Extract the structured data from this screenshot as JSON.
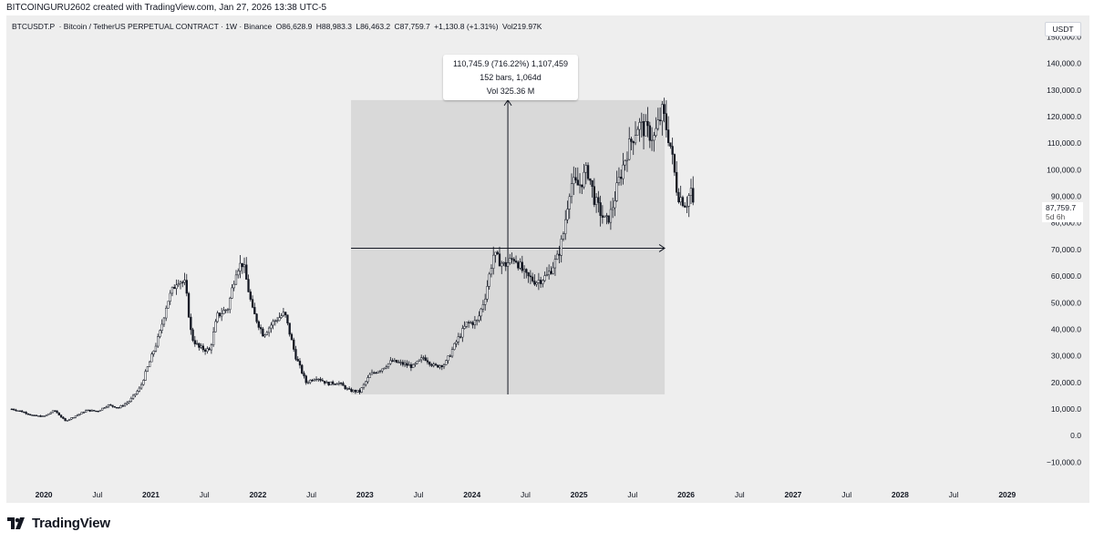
{
  "credit": "BITCOINGURU2602 created with TradingView.com, Jan 27, 2026 13:38 UTC-5",
  "header": {
    "symbol": "BTCUSDT.P",
    "description": "· Bitcoin / TetherUS PERPETUAL CONTRACT · 1W · Binance",
    "open": "O86,628.9",
    "high": "H88,983.3",
    "low": "L86,463.2",
    "close": "C87,759.7",
    "change": "+1,130.8 (+1.31%)",
    "volume": "Vol219.97K"
  },
  "currency": "USDT",
  "price_label": {
    "price": "87,759.7",
    "countdown": "5d 6h"
  },
  "measure": {
    "line1": "110,745.9 (716.22%) 1,107,459",
    "line2": "152 bars, 1,064d",
    "line3": "Vol 325.36 M",
    "start": {
      "year": 2022.87,
      "price": 15500
    },
    "end": {
      "year": 2025.8,
      "price": 126200
    }
  },
  "brand": "TradingView",
  "colors": {
    "background": "#eeeeee",
    "candle": "#131722",
    "measure_fill": "#d9d9d9",
    "measure_line": "#131722"
  },
  "chart_data": {
    "type": "candlestick",
    "title": "BTCUSDT.P · Bitcoin / TetherUS PERPETUAL CONTRACT · 1W · Binance",
    "xlabel": "",
    "ylabel": "USDT",
    "xlim": [
      2019.65,
      2029.3
    ],
    "ylim": [
      -15000,
      157000
    ],
    "y_ticks": [
      "−10,000.0",
      "0.0",
      "10,000.0",
      "20,000.0",
      "30,000.0",
      "40,000.0",
      "50,000.0",
      "60,000.0",
      "70,000.0",
      "80,000.0",
      "90,000.0",
      "100,000.0",
      "110,000.0",
      "120,000.0",
      "130,000.0",
      "140,000.0",
      "150,000.0"
    ],
    "y_tick_values": [
      -10000,
      0,
      10000,
      20000,
      30000,
      40000,
      50000,
      60000,
      70000,
      80000,
      90000,
      100000,
      110000,
      120000,
      130000,
      140000,
      150000
    ],
    "x_ticks": [
      {
        "label": "2020",
        "x": 2020.0,
        "major": true
      },
      {
        "label": "Jul",
        "x": 2020.5,
        "major": false
      },
      {
        "label": "2021",
        "x": 2021.0,
        "major": true
      },
      {
        "label": "Jul",
        "x": 2021.5,
        "major": false
      },
      {
        "label": "2022",
        "x": 2022.0,
        "major": true
      },
      {
        "label": "Jul",
        "x": 2022.5,
        "major": false
      },
      {
        "label": "2023",
        "x": 2023.0,
        "major": true
      },
      {
        "label": "Jul",
        "x": 2023.5,
        "major": false
      },
      {
        "label": "2024",
        "x": 2024.0,
        "major": true
      },
      {
        "label": "Jul",
        "x": 2024.5,
        "major": false
      },
      {
        "label": "2025",
        "x": 2025.0,
        "major": true
      },
      {
        "label": "Jul",
        "x": 2025.5,
        "major": false
      },
      {
        "label": "2026",
        "x": 2026.0,
        "major": true
      },
      {
        "label": "Jul",
        "x": 2026.5,
        "major": false
      },
      {
        "label": "2027",
        "x": 2027.0,
        "major": true
      },
      {
        "label": "Jul",
        "x": 2027.5,
        "major": false
      },
      {
        "label": "2028",
        "x": 2028.0,
        "major": true
      },
      {
        "label": "Jul",
        "x": 2028.5,
        "major": false
      },
      {
        "label": "2029",
        "x": 2029.0,
        "major": true
      }
    ],
    "price_path": [
      [
        2019.7,
        10000
      ],
      [
        2019.8,
        9000
      ],
      [
        2019.9,
        7500
      ],
      [
        2020.0,
        7200
      ],
      [
        2020.1,
        9500
      ],
      [
        2020.2,
        5500
      ],
      [
        2020.3,
        7500
      ],
      [
        2020.4,
        9500
      ],
      [
        2020.5,
        9200
      ],
      [
        2020.6,
        11500
      ],
      [
        2020.7,
        10500
      ],
      [
        2020.8,
        13000
      ],
      [
        2020.9,
        18000
      ],
      [
        2021.0,
        29000
      ],
      [
        2021.08,
        38000
      ],
      [
        2021.15,
        50000
      ],
      [
        2021.25,
        59000
      ],
      [
        2021.32,
        57000
      ],
      [
        2021.38,
        37000
      ],
      [
        2021.45,
        33000
      ],
      [
        2021.55,
        32000
      ],
      [
        2021.62,
        45000
      ],
      [
        2021.72,
        48000
      ],
      [
        2021.8,
        63000
      ],
      [
        2021.86,
        65000
      ],
      [
        2021.95,
        47000
      ],
      [
        2022.05,
        38000
      ],
      [
        2022.15,
        43000
      ],
      [
        2022.25,
        46000
      ],
      [
        2022.35,
        30000
      ],
      [
        2022.45,
        20000
      ],
      [
        2022.55,
        22000
      ],
      [
        2022.65,
        19500
      ],
      [
        2022.75,
        20000
      ],
      [
        2022.85,
        17000
      ],
      [
        2022.95,
        16500
      ],
      [
        2023.05,
        23000
      ],
      [
        2023.15,
        25000
      ],
      [
        2023.25,
        28000
      ],
      [
        2023.35,
        27000
      ],
      [
        2023.45,
        26000
      ],
      [
        2023.55,
        29500
      ],
      [
        2023.65,
        26000
      ],
      [
        2023.75,
        27000
      ],
      [
        2023.85,
        35000
      ],
      [
        2023.95,
        42000
      ],
      [
        2024.05,
        43000
      ],
      [
        2024.12,
        52000
      ],
      [
        2024.2,
        68000
      ],
      [
        2024.3,
        64000
      ],
      [
        2024.4,
        67000
      ],
      [
        2024.5,
        60000
      ],
      [
        2024.6,
        58000
      ],
      [
        2024.7,
        60000
      ],
      [
        2024.8,
        67000
      ],
      [
        2024.85,
        75000
      ],
      [
        2024.92,
        95000
      ],
      [
        2025.0,
        94000
      ],
      [
        2025.08,
        100000
      ],
      [
        2025.15,
        88000
      ],
      [
        2025.25,
        80000
      ],
      [
        2025.3,
        84000
      ],
      [
        2025.38,
        97000
      ],
      [
        2025.45,
        107000
      ],
      [
        2025.55,
        117000
      ],
      [
        2025.62,
        115000
      ],
      [
        2025.7,
        112000
      ],
      [
        2025.78,
        122000
      ],
      [
        2025.85,
        110000
      ],
      [
        2025.92,
        91000
      ],
      [
        2026.0,
        87000
      ],
      [
        2026.05,
        93000
      ],
      [
        2026.08,
        87759.7
      ]
    ]
  }
}
